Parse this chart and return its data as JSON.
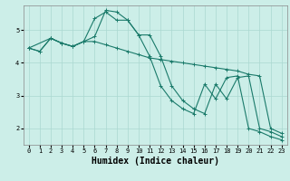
{
  "xlabel": "Humidex (Indice chaleur)",
  "bg_color": "#cceee8",
  "grid_color": "#aad8d0",
  "line_color": "#1a7a6a",
  "xlim": [
    -0.5,
    23.5
  ],
  "ylim": [
    1.5,
    5.75
  ],
  "xticks": [
    0,
    1,
    2,
    3,
    4,
    5,
    6,
    7,
    8,
    9,
    10,
    11,
    12,
    13,
    14,
    15,
    16,
    17,
    18,
    19,
    20,
    21,
    22,
    23
  ],
  "yticks": [
    2,
    3,
    4,
    5
  ],
  "line1_x": [
    0,
    1,
    2,
    3,
    4,
    5,
    6,
    7,
    8,
    9,
    10,
    11,
    12,
    13,
    14,
    15,
    16,
    17,
    18,
    19,
    20,
    21,
    22,
    23
  ],
  "line1_y": [
    4.45,
    4.35,
    4.75,
    4.6,
    4.5,
    4.65,
    5.35,
    5.55,
    5.3,
    5.3,
    4.85,
    4.85,
    4.2,
    3.3,
    2.85,
    2.6,
    2.45,
    3.35,
    2.9,
    3.55,
    3.6,
    2.0,
    1.9,
    1.75
  ],
  "line2_x": [
    0,
    1,
    2,
    3,
    4,
    5,
    6,
    7,
    8,
    9,
    10,
    11,
    12,
    13,
    14,
    15,
    16,
    17,
    18,
    19,
    20,
    21,
    22,
    23
  ],
  "line2_y": [
    4.45,
    4.35,
    4.75,
    4.6,
    4.5,
    4.65,
    4.65,
    4.55,
    4.45,
    4.35,
    4.25,
    4.15,
    4.1,
    4.05,
    4.0,
    3.95,
    3.9,
    3.85,
    3.8,
    3.75,
    3.65,
    3.6,
    2.0,
    1.85
  ],
  "line3_x": [
    0,
    2,
    3,
    4,
    5,
    6,
    7,
    8,
    9,
    10,
    11,
    12,
    13,
    14,
    15,
    16,
    17,
    18,
    19,
    20,
    21,
    22,
    23
  ],
  "line3_y": [
    4.45,
    4.75,
    4.6,
    4.5,
    4.65,
    4.8,
    5.6,
    5.55,
    5.3,
    4.85,
    4.2,
    3.3,
    2.85,
    2.6,
    2.45,
    3.35,
    2.9,
    3.55,
    3.6,
    2.0,
    1.9,
    1.75,
    1.65
  ],
  "marker_size": 3,
  "line_width": 0.8,
  "tick_fontsize": 5.0,
  "xlabel_fontsize": 7.0
}
